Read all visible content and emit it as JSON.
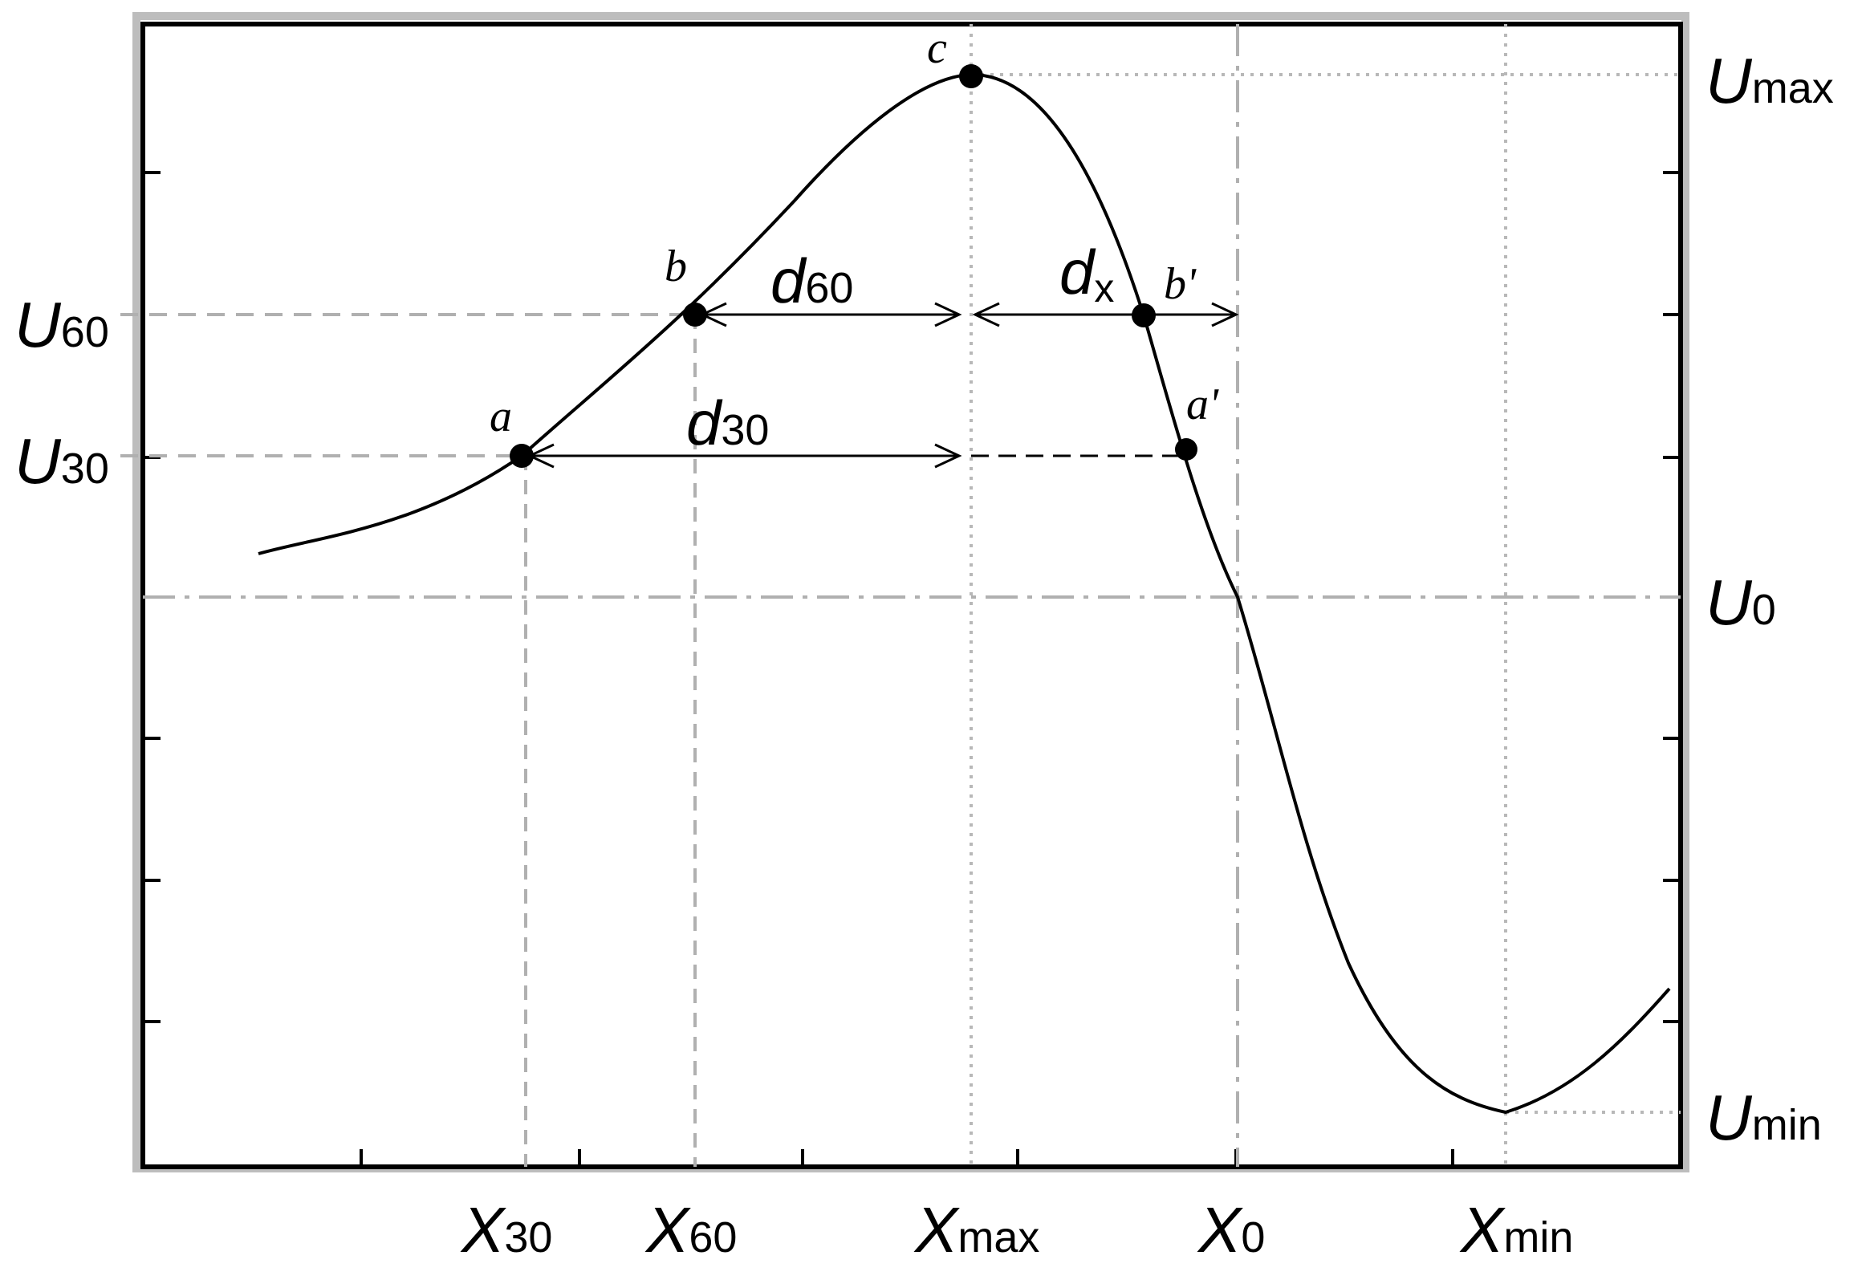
{
  "diagram": {
    "colors": {
      "curve": "#000000",
      "frame": "#000000",
      "frame_shadow": "#bdbdbd",
      "dashed_guides": "#b0b0b0",
      "dotted_guides": "#b8b8b8",
      "points": "#000000"
    },
    "left_labels": [
      {
        "id": "u60",
        "main": "U",
        "sub": "60"
      },
      {
        "id": "u30",
        "main": "U",
        "sub": "30"
      }
    ],
    "right_labels": [
      {
        "id": "umax",
        "main": "U",
        "sub": "max"
      },
      {
        "id": "u0",
        "main": "U",
        "sub": "0"
      },
      {
        "id": "umin",
        "main": "U",
        "sub": "min"
      }
    ],
    "bottom_labels": [
      {
        "id": "x30",
        "main": "X",
        "sub": "30"
      },
      {
        "id": "x60",
        "main": "X",
        "sub": "60"
      },
      {
        "id": "xmax",
        "main": "X",
        "sub": "max"
      },
      {
        "id": "x0",
        "main": "X",
        "sub": "0"
      },
      {
        "id": "xmin",
        "main": "X",
        "sub": "min"
      }
    ],
    "point_labels": {
      "a": "a",
      "b": "b",
      "c": "c",
      "b_prime": "b'",
      "a_prime": "a'"
    },
    "distance_labels": {
      "d60": {
        "main": "d",
        "sub": "60"
      },
      "d30": {
        "main": "d",
        "sub": "30"
      },
      "dx": {
        "main": "d",
        "sub": "x"
      }
    }
  }
}
